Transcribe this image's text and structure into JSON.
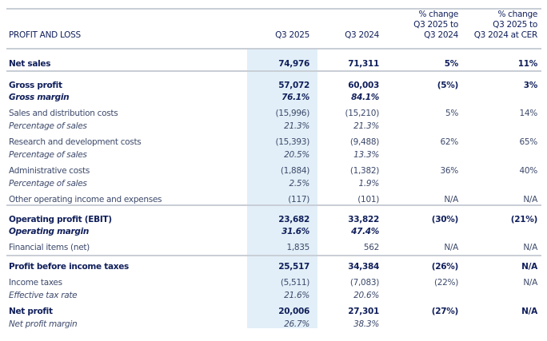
{
  "header": {
    "title": "PROFIT AND LOSS",
    "col1": "Q3 2025",
    "col2": "Q3 2024",
    "col3": [
      "% change",
      "Q3 2025 to",
      "Q3 2024"
    ],
    "col4": [
      "% change",
      "Q3 2025 to",
      "Q3 2024 at CER"
    ]
  },
  "colors": {
    "text_dark": "#0f1e5a",
    "text": "#3d4a6b",
    "highlight": "#e2eff8",
    "rule": "#c9ced6"
  },
  "rows": [
    {
      "label": "Net sales",
      "style": "bold",
      "q3_2025": "74,976",
      "q3_2024": "71,311",
      "change": "5%",
      "change_cer": "11%"
    },
    {
      "label": "Gross profit",
      "style": "bold",
      "q3_2025": "57,072",
      "q3_2024": "60,003",
      "change": "(5%)",
      "change_cer": "3%"
    },
    {
      "label": "Gross margin",
      "style": "boldital",
      "q3_2025": "76.1%",
      "q3_2024": "84.1%",
      "change": "",
      "change_cer": ""
    },
    {
      "label": "Sales and distribution costs",
      "style": "normal",
      "q3_2025": "(15,996)",
      "q3_2024": "(15,210)",
      "change": "5%",
      "change_cer": "14%"
    },
    {
      "label": "Percentage of sales",
      "style": "ital",
      "q3_2025": "21.3%",
      "q3_2024": "21.3%",
      "change": "",
      "change_cer": ""
    },
    {
      "label": "Research and development costs",
      "style": "normal",
      "q3_2025": "(15,393)",
      "q3_2024": "(9,488)",
      "change": "62%",
      "change_cer": "65%"
    },
    {
      "label": "Percentage of sales",
      "style": "ital",
      "q3_2025": "20.5%",
      "q3_2024": "13.3%",
      "change": "",
      "change_cer": ""
    },
    {
      "label": "Administrative costs",
      "style": "normal",
      "q3_2025": "(1,884)",
      "q3_2024": "(1,382)",
      "change": "36%",
      "change_cer": "40%"
    },
    {
      "label": "Percentage of sales",
      "style": "ital",
      "q3_2025": "2.5%",
      "q3_2024": "1.9%",
      "change": "",
      "change_cer": ""
    },
    {
      "label": "Other operating income and expenses",
      "style": "normal",
      "q3_2025": "(117)",
      "q3_2024": "(101)",
      "change": "N/A",
      "change_cer": "N/A"
    },
    {
      "label": "Operating profit (EBIT)",
      "style": "bold",
      "q3_2025": "23,682",
      "q3_2024": "33,822",
      "change": "(30%)",
      "change_cer": "(21%)"
    },
    {
      "label": "Operating margin",
      "style": "boldital",
      "q3_2025": "31.6%",
      "q3_2024": "47.4%",
      "change": "",
      "change_cer": ""
    },
    {
      "label": "Financial items (net)",
      "style": "normal",
      "q3_2025": "1,835",
      "q3_2024": "562",
      "change": "N/A",
      "change_cer": "N/A"
    },
    {
      "label": "Profit before income taxes",
      "style": "bold",
      "q3_2025": "25,517",
      "q3_2024": "34,384",
      "change": "(26%)",
      "change_cer": "N/A"
    },
    {
      "label": "Income taxes",
      "style": "normal",
      "q3_2025": "(5,511)",
      "q3_2024": "(7,083)",
      "change": "(22%)",
      "change_cer": "N/A"
    },
    {
      "label": "Effective tax rate",
      "style": "ital",
      "q3_2025": "21.6%",
      "q3_2024": "20.6%",
      "change": "",
      "change_cer": ""
    },
    {
      "label": "Net profit",
      "style": "bold",
      "q3_2025": "20,006",
      "q3_2024": "27,301",
      "change": "(27%)",
      "change_cer": "N/A"
    },
    {
      "label": "Net profit margin",
      "style": "ital",
      "q3_2025": "26.7%",
      "q3_2024": "38.3%",
      "change": "",
      "change_cer": ""
    }
  ]
}
